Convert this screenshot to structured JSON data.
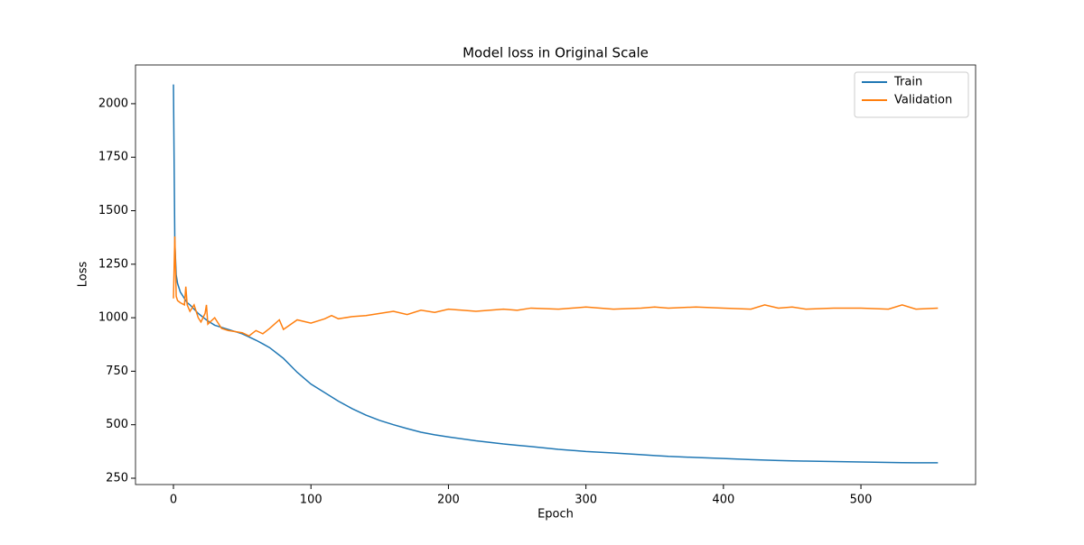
{
  "chart_data": {
    "type": "line",
    "title": "Model loss in Original Scale",
    "x_label": "Epoch",
    "y_label": "Loss",
    "x": [
      0,
      1,
      2,
      3,
      5,
      8,
      9,
      10,
      12,
      15,
      18,
      20,
      23,
      24,
      25,
      30,
      35,
      40,
      50,
      55,
      60,
      65,
      70,
      77,
      80,
      90,
      100,
      110,
      115,
      120,
      130,
      140,
      150,
      160,
      170,
      180,
      190,
      200,
      220,
      240,
      250,
      260,
      280,
      300,
      320,
      340,
      350,
      360,
      380,
      400,
      420,
      430,
      440,
      450,
      460,
      480,
      500,
      520,
      530,
      540,
      556
    ],
    "series": [
      {
        "name": "Train",
        "color": "#1f77b4",
        "values": [
          2090,
          1350,
          1200,
          1160,
          1120,
          1090,
          1080,
          1070,
          1060,
          1040,
          1020,
          1010,
          995,
          990,
          985,
          965,
          955,
          945,
          925,
          910,
          895,
          878,
          860,
          825,
          810,
          745,
          690,
          650,
          630,
          610,
          575,
          545,
          520,
          500,
          482,
          465,
          453,
          443,
          425,
          410,
          404,
          398,
          385,
          375,
          368,
          360,
          356,
          352,
          347,
          342,
          337,
          335,
          333,
          331,
          330,
          328,
          326,
          324,
          323,
          322,
          322
        ]
      },
      {
        "name": "Validation",
        "color": "#ff7f0e",
        "values": [
          1090,
          1380,
          1100,
          1080,
          1070,
          1060,
          1145,
          1060,
          1030,
          1060,
          1000,
          980,
          1020,
          1060,
          970,
          1000,
          950,
          940,
          930,
          915,
          940,
          925,
          950,
          990,
          945,
          990,
          975,
          995,
          1010,
          995,
          1005,
          1010,
          1020,
          1030,
          1015,
          1035,
          1025,
          1040,
          1030,
          1040,
          1035,
          1045,
          1040,
          1050,
          1040,
          1045,
          1050,
          1045,
          1050,
          1045,
          1040,
          1060,
          1045,
          1050,
          1040,
          1045,
          1045,
          1040,
          1060,
          1040,
          1045
        ]
      }
    ],
    "xlim": [
      -27.6,
      583.4
    ],
    "ylim": [
      220.5,
      2181
    ],
    "xticks": [
      0,
      100,
      200,
      300,
      400,
      500
    ],
    "yticks": [
      250,
      500,
      750,
      1000,
      1250,
      1500,
      1750,
      2000
    ],
    "legend": "upper right",
    "grid": false
  }
}
